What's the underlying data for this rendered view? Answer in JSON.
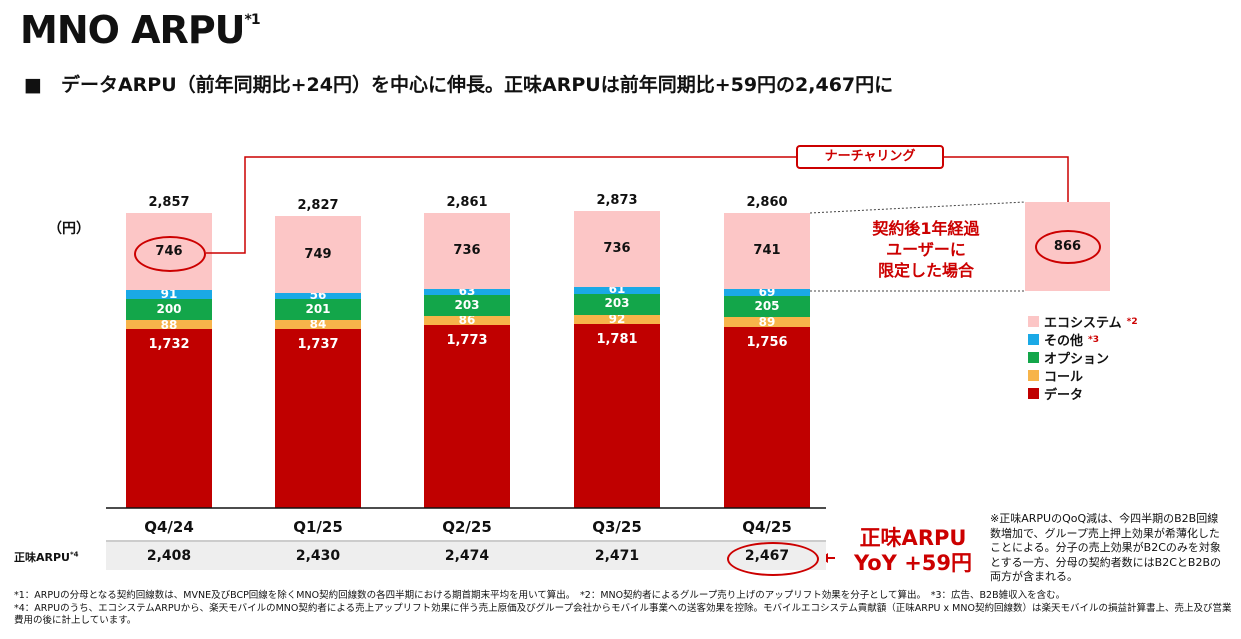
{
  "header": {
    "title": "MNO ARPU",
    "title_sup": "*1",
    "subtitle": "■　データARPU（前年同期比+24円）を中心に伸長。正味ARPUは前年同期比+59円の2,467円に"
  },
  "chart_data": {
    "type": "bar",
    "stacked": true,
    "unit_label": "（円）",
    "categories": [
      "Q4/24",
      "Q1/25",
      "Q2/25",
      "Q3/25",
      "Q4/25"
    ],
    "series": [
      {
        "name": "データ",
        "color": "#c00000",
        "values": [
          1732,
          1737,
          1773,
          1781,
          1756
        ]
      },
      {
        "name": "コール",
        "color": "#f7b44a",
        "values": [
          88,
          84,
          86,
          92,
          89
        ]
      },
      {
        "name": "オプション",
        "color": "#13a64a",
        "values": [
          200,
          201,
          203,
          203,
          205
        ]
      },
      {
        "name": "その他",
        "sup": "*3",
        "color": "#1aa9e6",
        "values": [
          91,
          56,
          63,
          61,
          69
        ]
      },
      {
        "name": "エコシステム",
        "sup": "*2",
        "color": "#fcc6c6",
        "values": [
          746,
          749,
          736,
          736,
          741
        ]
      }
    ],
    "totals": [
      2857,
      2827,
      2861,
      2873,
      2860
    ],
    "extra_bar": {
      "label": "契約後1年経過\nユーザーに\n限定した場合",
      "value": 866
    },
    "annotation": "ナーチャリング",
    "net_arpu": {
      "label": "正味ARPU",
      "sup": "*4",
      "values": [
        2408,
        2430,
        2474,
        2471,
        2467
      ]
    },
    "ylim": [
      0,
      2900
    ],
    "legend_position": "right"
  },
  "callout": {
    "line1": "正味ARPU",
    "line2": "YoY +59円"
  },
  "note": "※正味ARPUのQoQ減は、今四半期のB2B回線数増加で、グループ売上押上効果が希薄化したことによる。分子の売上効果がB2Cのみを対象とする一方、分母の契約者数にはB2CとB2Bの両方が含まれる。",
  "footnotes": [
    "*1：ARPUの分母となる契約回線数は、MVNE及びBCP回線を除くMNO契約回線数の各四半期における期首期末平均を用いて算出。　*2：MNO契約者によるグループ売り上げのアップリフト効果を分子として算出。　*3：広告、B2B雑収入を含む。",
    "*4：ARPUのうち、エコシステムARPUから、楽天モバイルのMNO契約者による売上アップリフト効果に伴う売上原価及びグループ会社からモバイル事業への送客効果を控除。モバイルエコシステム貢献額（正味ARPU x MNO契約回線数）は楽天モバイルの損益計算書上、売上及び営業費用の後に計上しています。"
  ]
}
